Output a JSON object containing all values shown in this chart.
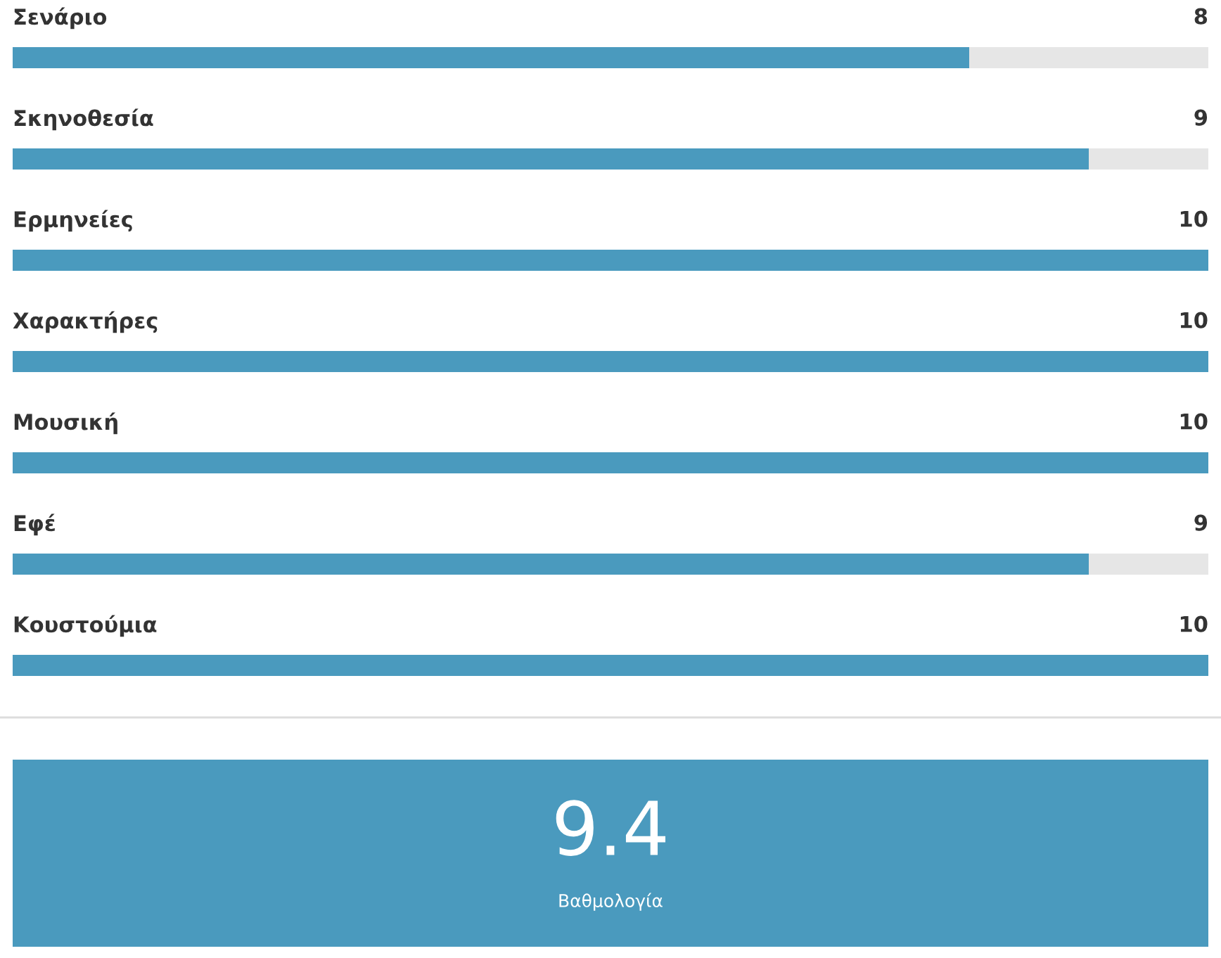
{
  "chart_data": [
    {
      "type": "bar",
      "orientation": "horizontal",
      "categories": [
        "Σενάριο",
        "Σκηνοθεσία",
        "Ερμηνείες",
        "Χαρακτήρες",
        "Μουσική",
        "Εφέ",
        "Κουστούμια"
      ],
      "values": [
        8,
        9,
        10,
        10,
        10,
        9,
        10
      ],
      "color": "#4a9abe",
      "xlim": [
        0,
        10
      ],
      "data_labels": true
    },
    {
      "type": "other",
      "color": "#4a9abe",
      "annotations": [
        "9.4",
        "Βαθμολογία"
      ]
    }
  ]
}
